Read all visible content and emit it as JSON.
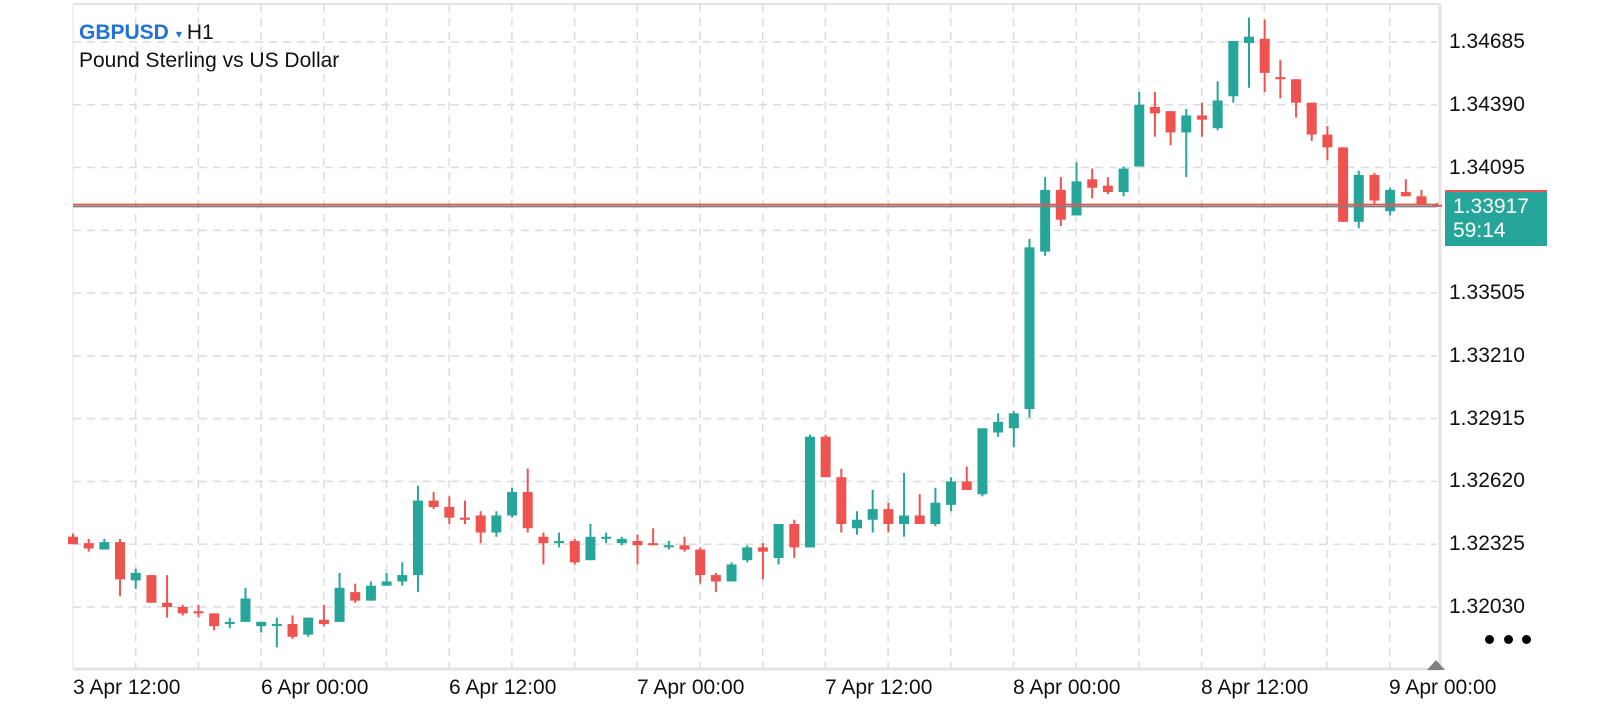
{
  "header": {
    "symbol": "GBPUSD",
    "caret": "▾",
    "timeframe": "H1",
    "description": "Pound Sterling vs US Dollar"
  },
  "colors": {
    "up": "#26a69a",
    "down": "#ef5350",
    "symbol": "#1f73d6",
    "grid": "#dcdcdc",
    "axis": "#e3e3e3",
    "current_price_line_top": "#ef5350",
    "current_price_line_bottom": "#808080"
  },
  "price_tag": {
    "price": "1.33917",
    "countdown": "59:14"
  },
  "y_axis": {
    "labels": [
      "1.34685",
      "1.34390",
      "1.34095",
      "1.33505",
      "1.33210",
      "1.32915",
      "1.32620",
      "1.32325",
      "1.32030"
    ]
  },
  "x_axis": {
    "labels": [
      "3 Apr 12:00",
      "6 Apr 00:00",
      "6 Apr 12:00",
      "7 Apr 00:00",
      "7 Apr 12:00",
      "8 Apr 00:00",
      "8 Apr 12:00",
      "9 Apr 00:00"
    ]
  },
  "controls": {
    "more_icon": "more-horizontal-icon",
    "scroll_icon": "triangle-up-icon"
  },
  "chart_data": {
    "type": "candlestick",
    "title": "GBPUSD H1",
    "subtitle": "Pound Sterling vs US Dollar",
    "xlabel": "",
    "ylabel": "",
    "ylim": [
      1.318,
      1.3478
    ],
    "y_ticks": [
      1.34685,
      1.3439,
      1.34095,
      1.33505,
      1.3321,
      1.32915,
      1.3262,
      1.32325,
      1.3203
    ],
    "x_ticks": [
      "3 Apr 12:00",
      "6 Apr 00:00",
      "6 Apr 12:00",
      "7 Apr 00:00",
      "7 Apr 12:00",
      "8 Apr 00:00",
      "8 Apr 12:00",
      "9 Apr 00:00"
    ],
    "grid": true,
    "current_price": 1.33917,
    "bar_countdown": "59:14",
    "candles": [
      {
        "o": 1.3236,
        "h": 1.32375,
        "l": 1.3233,
        "c": 1.32325
      },
      {
        "o": 1.3233,
        "h": 1.3235,
        "l": 1.3229,
        "c": 1.32305
      },
      {
        "o": 1.323,
        "h": 1.3235,
        "l": 1.323,
        "c": 1.32335
      },
      {
        "o": 1.32335,
        "h": 1.3235,
        "l": 1.3208,
        "c": 1.3216
      },
      {
        "o": 1.32155,
        "h": 1.3221,
        "l": 1.32115,
        "c": 1.3219
      },
      {
        "o": 1.3218,
        "h": 1.3218,
        "l": 1.3205,
        "c": 1.3205
      },
      {
        "o": 1.3205,
        "h": 1.3218,
        "l": 1.3198,
        "c": 1.3203
      },
      {
        "o": 1.3203,
        "h": 1.3204,
        "l": 1.3199,
        "c": 1.32
      },
      {
        "o": 1.3201,
        "h": 1.3204,
        "l": 1.3198,
        "c": 1.32
      },
      {
        "o": 1.32,
        "h": 1.32,
        "l": 1.3192,
        "c": 1.3194
      },
      {
        "o": 1.3195,
        "h": 1.3198,
        "l": 1.3193,
        "c": 1.3196
      },
      {
        "o": 1.3196,
        "h": 1.3212,
        "l": 1.3196,
        "c": 1.3207
      },
      {
        "o": 1.3194,
        "h": 1.3196,
        "l": 1.3191,
        "c": 1.3196
      },
      {
        "o": 1.3195,
        "h": 1.3198,
        "l": 1.3184,
        "c": 1.3195
      },
      {
        "o": 1.3195,
        "h": 1.3199,
        "l": 1.3188,
        "c": 1.3189
      },
      {
        "o": 1.319,
        "h": 1.3198,
        "l": 1.3189,
        "c": 1.3198
      },
      {
        "o": 1.3197,
        "h": 1.3204,
        "l": 1.3194,
        "c": 1.3195
      },
      {
        "o": 1.3196,
        "h": 1.3219,
        "l": 1.3196,
        "c": 1.3212
      },
      {
        "o": 1.321,
        "h": 1.3214,
        "l": 1.3205,
        "c": 1.3206
      },
      {
        "o": 1.3206,
        "h": 1.3215,
        "l": 1.3206,
        "c": 1.3213
      },
      {
        "o": 1.3213,
        "h": 1.3219,
        "l": 1.3213,
        "c": 1.3215
      },
      {
        "o": 1.3215,
        "h": 1.3224,
        "l": 1.3213,
        "c": 1.3218
      },
      {
        "o": 1.3218,
        "h": 1.326,
        "l": 1.321,
        "c": 1.3253
      },
      {
        "o": 1.3253,
        "h": 1.3257,
        "l": 1.3249,
        "c": 1.325
      },
      {
        "o": 1.325,
        "h": 1.3255,
        "l": 1.3242,
        "c": 1.3245
      },
      {
        "o": 1.3245,
        "h": 1.3253,
        "l": 1.3242,
        "c": 1.3244
      },
      {
        "o": 1.3246,
        "h": 1.3248,
        "l": 1.3233,
        "c": 1.3238
      },
      {
        "o": 1.3238,
        "h": 1.3248,
        "l": 1.3236,
        "c": 1.3246
      },
      {
        "o": 1.3246,
        "h": 1.3259,
        "l": 1.3245,
        "c": 1.3257
      },
      {
        "o": 1.3257,
        "h": 1.3268,
        "l": 1.3238,
        "c": 1.324
      },
      {
        "o": 1.3236,
        "h": 1.3238,
        "l": 1.3223,
        "c": 1.3233
      },
      {
        "o": 1.3233,
        "h": 1.3238,
        "l": 1.3231,
        "c": 1.3234
      },
      {
        "o": 1.3234,
        "h": 1.3235,
        "l": 1.3223,
        "c": 1.3224
      },
      {
        "o": 1.3225,
        "h": 1.3242,
        "l": 1.3225,
        "c": 1.3236
      },
      {
        "o": 1.3236,
        "h": 1.3238,
        "l": 1.3233,
        "c": 1.3236
      },
      {
        "o": 1.3233,
        "h": 1.3236,
        "l": 1.3232,
        "c": 1.3235
      },
      {
        "o": 1.3234,
        "h": 1.3237,
        "l": 1.3223,
        "c": 1.3232
      },
      {
        "o": 1.3233,
        "h": 1.324,
        "l": 1.3232,
        "c": 1.3232
      },
      {
        "o": 1.3232,
        "h": 1.3234,
        "l": 1.323,
        "c": 1.3232
      },
      {
        "o": 1.3232,
        "h": 1.3236,
        "l": 1.3229,
        "c": 1.323
      },
      {
        "o": 1.323,
        "h": 1.3231,
        "l": 1.3214,
        "c": 1.3218
      },
      {
        "o": 1.3218,
        "h": 1.3219,
        "l": 1.321,
        "c": 1.3215
      },
      {
        "o": 1.3215,
        "h": 1.3224,
        "l": 1.3215,
        "c": 1.3223
      },
      {
        "o": 1.3225,
        "h": 1.3232,
        "l": 1.3224,
        "c": 1.3231
      },
      {
        "o": 1.3231,
        "h": 1.3233,
        "l": 1.3216,
        "c": 1.3229
      },
      {
        "o": 1.3226,
        "h": 1.3242,
        "l": 1.3223,
        "c": 1.3242
      },
      {
        "o": 1.3242,
        "h": 1.3244,
        "l": 1.3226,
        "c": 1.3231
      },
      {
        "o": 1.3231,
        "h": 1.3284,
        "l": 1.3231,
        "c": 1.3283
      },
      {
        "o": 1.3283,
        "h": 1.3284,
        "l": 1.3264,
        "c": 1.3264
      },
      {
        "o": 1.3264,
        "h": 1.3268,
        "l": 1.3238,
        "c": 1.3242
      },
      {
        "o": 1.324,
        "h": 1.3248,
        "l": 1.3237,
        "c": 1.3244
      },
      {
        "o": 1.3244,
        "h": 1.3258,
        "l": 1.3238,
        "c": 1.3249
      },
      {
        "o": 1.3249,
        "h": 1.3252,
        "l": 1.3238,
        "c": 1.3242
      },
      {
        "o": 1.3242,
        "h": 1.3266,
        "l": 1.3236,
        "c": 1.3246
      },
      {
        "o": 1.3246,
        "h": 1.3256,
        "l": 1.3242,
        "c": 1.3242
      },
      {
        "o": 1.3242,
        "h": 1.3259,
        "l": 1.3241,
        "c": 1.3252
      },
      {
        "o": 1.3251,
        "h": 1.3264,
        "l": 1.3248,
        "c": 1.3262
      },
      {
        "o": 1.3262,
        "h": 1.3269,
        "l": 1.3259,
        "c": 1.3258
      },
      {
        "o": 1.3256,
        "h": 1.3282,
        "l": 1.3255,
        "c": 1.3287
      },
      {
        "o": 1.3285,
        "h": 1.3294,
        "l": 1.3283,
        "c": 1.329
      },
      {
        "o": 1.3287,
        "h": 1.3295,
        "l": 1.3278,
        "c": 1.3294
      },
      {
        "o": 1.3296,
        "h": 1.3376,
        "l": 1.3292,
        "c": 1.3372
      },
      {
        "o": 1.337,
        "h": 1.3405,
        "l": 1.3368,
        "c": 1.3399
      },
      {
        "o": 1.3399,
        "h": 1.3405,
        "l": 1.3382,
        "c": 1.3385
      },
      {
        "o": 1.3387,
        "h": 1.3412,
        "l": 1.3387,
        "c": 1.3403
      },
      {
        "o": 1.3404,
        "h": 1.3409,
        "l": 1.3395,
        "c": 1.34
      },
      {
        "o": 1.3401,
        "h": 1.3405,
        "l": 1.3397,
        "c": 1.3398
      },
      {
        "o": 1.3398,
        "h": 1.341,
        "l": 1.3396,
        "c": 1.3409
      },
      {
        "o": 1.341,
        "h": 1.3445,
        "l": 1.341,
        "c": 1.3439
      },
      {
        "o": 1.3438,
        "h": 1.3445,
        "l": 1.3424,
        "c": 1.3435
      },
      {
        "o": 1.3436,
        "h": 1.3436,
        "l": 1.342,
        "c": 1.3426
      },
      {
        "o": 1.3426,
        "h": 1.3437,
        "l": 1.3405,
        "c": 1.3434
      },
      {
        "o": 1.3434,
        "h": 1.344,
        "l": 1.3424,
        "c": 1.3432
      },
      {
        "o": 1.3428,
        "h": 1.345,
        "l": 1.3427,
        "c": 1.3441
      },
      {
        "o": 1.3443,
        "h": 1.3469,
        "l": 1.344,
        "c": 1.3469
      },
      {
        "o": 1.3468,
        "h": 1.348,
        "l": 1.3447,
        "c": 1.3471
      },
      {
        "o": 1.347,
        "h": 1.3479,
        "l": 1.3445,
        "c": 1.3454
      },
      {
        "o": 1.3452,
        "h": 1.346,
        "l": 1.3442,
        "c": 1.3451
      },
      {
        "o": 1.3451,
        "h": 1.3451,
        "l": 1.3433,
        "c": 1.344
      },
      {
        "o": 1.344,
        "h": 1.344,
        "l": 1.3422,
        "c": 1.3425
      },
      {
        "o": 1.3425,
        "h": 1.3429,
        "l": 1.3413,
        "c": 1.3419
      },
      {
        "o": 1.3419,
        "h": 1.3419,
        "l": 1.3384,
        "c": 1.3384
      },
      {
        "o": 1.3384,
        "h": 1.3408,
        "l": 1.3381,
        "c": 1.3406
      },
      {
        "o": 1.3406,
        "h": 1.3407,
        "l": 1.3392,
        "c": 1.3394
      },
      {
        "o": 1.3389,
        "h": 1.34,
        "l": 1.3387,
        "c": 1.3399
      },
      {
        "o": 1.3398,
        "h": 1.3404,
        "l": 1.3396,
        "c": 1.3396
      },
      {
        "o": 1.3396,
        "h": 1.3399,
        "l": 1.3392,
        "c": 1.3392
      },
      {
        "o": 1.3392,
        "h": 1.3393,
        "l": 1.3391,
        "c": 1.33917
      }
    ]
  }
}
